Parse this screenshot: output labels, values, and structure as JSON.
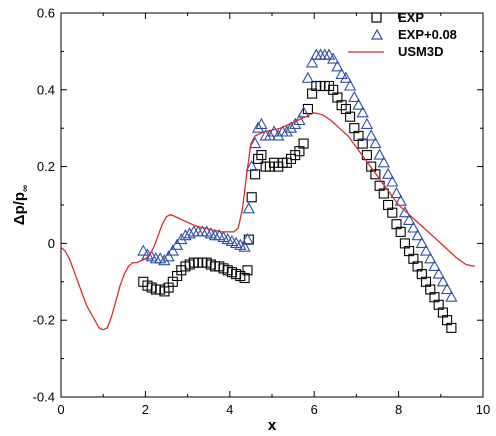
{
  "chart_data": {
    "type": "scatter",
    "title": "",
    "xlabel": "x",
    "ylabel": "Δp/p∞",
    "ylabel_main": "Δp/p",
    "ylabel_sub": "∞",
    "xlim": [
      0,
      10
    ],
    "ylim": [
      -0.4,
      0.6
    ],
    "xticks": [
      0,
      2,
      4,
      6,
      8,
      10
    ],
    "yticks": [
      -0.4,
      -0.2,
      0,
      0.2,
      0.4,
      0.6
    ],
    "xtick_labels": [
      "0",
      "2",
      "4",
      "6",
      "8",
      "10"
    ],
    "ytick_labels": [
      "-0.4",
      "-0.2",
      "0",
      "0.2",
      "0.4",
      "0.6"
    ],
    "grid": false,
    "legend_position": "top-right",
    "series": [
      {
        "name": "EXP",
        "kind": "markers",
        "marker": "square",
        "color": "#000000",
        "points": [
          [
            1.95,
            -0.1
          ],
          [
            2.05,
            -0.11
          ],
          [
            2.15,
            -0.115
          ],
          [
            2.25,
            -0.12
          ],
          [
            2.35,
            -0.12
          ],
          [
            2.45,
            -0.125
          ],
          [
            2.55,
            -0.115
          ],
          [
            2.65,
            -0.1
          ],
          [
            2.75,
            -0.085
          ],
          [
            2.85,
            -0.07
          ],
          [
            2.95,
            -0.06
          ],
          [
            3.05,
            -0.055
          ],
          [
            3.15,
            -0.05
          ],
          [
            3.25,
            -0.05
          ],
          [
            3.35,
            -0.05
          ],
          [
            3.45,
            -0.05
          ],
          [
            3.55,
            -0.055
          ],
          [
            3.65,
            -0.06
          ],
          [
            3.75,
            -0.06
          ],
          [
            3.85,
            -0.065
          ],
          [
            3.95,
            -0.07
          ],
          [
            4.05,
            -0.075
          ],
          [
            4.15,
            -0.08
          ],
          [
            4.25,
            -0.085
          ],
          [
            4.35,
            -0.09
          ],
          [
            4.42,
            -0.07
          ],
          [
            4.45,
            0.01
          ],
          [
            4.52,
            0.12
          ],
          [
            4.6,
            0.18
          ],
          [
            4.67,
            0.22
          ],
          [
            4.75,
            0.23
          ],
          [
            4.85,
            0.2
          ],
          [
            4.95,
            0.2
          ],
          [
            5.05,
            0.21
          ],
          [
            5.15,
            0.2
          ],
          [
            5.25,
            0.21
          ],
          [
            5.35,
            0.21
          ],
          [
            5.45,
            0.22
          ],
          [
            5.55,
            0.23
          ],
          [
            5.65,
            0.24
          ],
          [
            5.75,
            0.26
          ],
          [
            5.85,
            0.35
          ],
          [
            5.95,
            0.39
          ],
          [
            6.05,
            0.41
          ],
          [
            6.15,
            0.41
          ],
          [
            6.25,
            0.41
          ],
          [
            6.35,
            0.41
          ],
          [
            6.45,
            0.4
          ],
          [
            6.55,
            0.38
          ],
          [
            6.65,
            0.36
          ],
          [
            6.75,
            0.35
          ],
          [
            6.85,
            0.33
          ],
          [
            6.95,
            0.3
          ],
          [
            7.05,
            0.28
          ],
          [
            7.15,
            0.26
          ],
          [
            7.25,
            0.23
          ],
          [
            7.35,
            0.2
          ],
          [
            7.45,
            0.18
          ],
          [
            7.55,
            0.15
          ],
          [
            7.65,
            0.13
          ],
          [
            7.75,
            0.1
          ],
          [
            7.85,
            0.08
          ],
          [
            7.95,
            0.05
          ],
          [
            8.05,
            0.03
          ],
          [
            8.15,
            0.0
          ],
          [
            8.25,
            -0.02
          ],
          [
            8.35,
            -0.04
          ],
          [
            8.45,
            -0.06
          ],
          [
            8.55,
            -0.08
          ],
          [
            8.65,
            -0.1
          ],
          [
            8.75,
            -0.12
          ],
          [
            8.85,
            -0.14
          ],
          [
            8.95,
            -0.16
          ],
          [
            9.05,
            -0.18
          ],
          [
            9.15,
            -0.2
          ],
          [
            9.25,
            -0.22
          ]
        ]
      },
      {
        "name": "EXP+0.08",
        "kind": "markers",
        "marker": "triangle",
        "color": "#2e4fa8",
        "points": [
          [
            1.95,
            -0.02
          ],
          [
            2.05,
            -0.03
          ],
          [
            2.15,
            -0.035
          ],
          [
            2.25,
            -0.04
          ],
          [
            2.35,
            -0.04
          ],
          [
            2.45,
            -0.045
          ],
          [
            2.55,
            -0.035
          ],
          [
            2.65,
            -0.02
          ],
          [
            2.75,
            -0.005
          ],
          [
            2.85,
            0.01
          ],
          [
            2.95,
            0.02
          ],
          [
            3.05,
            0.025
          ],
          [
            3.15,
            0.03
          ],
          [
            3.25,
            0.03
          ],
          [
            3.35,
            0.03
          ],
          [
            3.45,
            0.03
          ],
          [
            3.55,
            0.025
          ],
          [
            3.65,
            0.02
          ],
          [
            3.75,
            0.02
          ],
          [
            3.85,
            0.015
          ],
          [
            3.95,
            0.01
          ],
          [
            4.05,
            0.005
          ],
          [
            4.15,
            0.0
          ],
          [
            4.25,
            -0.005
          ],
          [
            4.35,
            -0.01
          ],
          [
            4.42,
            0.01
          ],
          [
            4.45,
            0.09
          ],
          [
            4.52,
            0.2
          ],
          [
            4.6,
            0.26
          ],
          [
            4.67,
            0.3
          ],
          [
            4.75,
            0.31
          ],
          [
            4.85,
            0.28
          ],
          [
            4.95,
            0.28
          ],
          [
            5.05,
            0.29
          ],
          [
            5.15,
            0.28
          ],
          [
            5.25,
            0.29
          ],
          [
            5.35,
            0.29
          ],
          [
            5.45,
            0.3
          ],
          [
            5.55,
            0.31
          ],
          [
            5.65,
            0.32
          ],
          [
            5.75,
            0.34
          ],
          [
            5.85,
            0.43
          ],
          [
            5.95,
            0.47
          ],
          [
            6.05,
            0.49
          ],
          [
            6.15,
            0.49
          ],
          [
            6.25,
            0.49
          ],
          [
            6.35,
            0.49
          ],
          [
            6.45,
            0.48
          ],
          [
            6.55,
            0.46
          ],
          [
            6.65,
            0.44
          ],
          [
            6.75,
            0.43
          ],
          [
            6.85,
            0.41
          ],
          [
            6.95,
            0.38
          ],
          [
            7.05,
            0.36
          ],
          [
            7.15,
            0.34
          ],
          [
            7.25,
            0.31
          ],
          [
            7.35,
            0.28
          ],
          [
            7.45,
            0.26
          ],
          [
            7.55,
            0.23
          ],
          [
            7.65,
            0.21
          ],
          [
            7.75,
            0.18
          ],
          [
            7.85,
            0.16
          ],
          [
            7.95,
            0.13
          ],
          [
            8.05,
            0.11
          ],
          [
            8.15,
            0.08
          ],
          [
            8.25,
            0.06
          ],
          [
            8.35,
            0.04
          ],
          [
            8.45,
            0.02
          ],
          [
            8.55,
            0.0
          ],
          [
            8.65,
            -0.02
          ],
          [
            8.75,
            -0.04
          ],
          [
            8.85,
            -0.06
          ],
          [
            8.95,
            -0.08
          ],
          [
            9.05,
            -0.1
          ],
          [
            9.15,
            -0.12
          ],
          [
            9.25,
            -0.14
          ]
        ]
      },
      {
        "name": "USM3D",
        "kind": "line",
        "color": "#d42c2c",
        "points": [
          [
            0.0,
            -0.01
          ],
          [
            0.1,
            -0.02
          ],
          [
            0.2,
            -0.04
          ],
          [
            0.3,
            -0.07
          ],
          [
            0.4,
            -0.1
          ],
          [
            0.5,
            -0.13
          ],
          [
            0.6,
            -0.16
          ],
          [
            0.7,
            -0.18
          ],
          [
            0.8,
            -0.2
          ],
          [
            0.9,
            -0.22
          ],
          [
            1.0,
            -0.225
          ],
          [
            1.1,
            -0.22
          ],
          [
            1.2,
            -0.19
          ],
          [
            1.3,
            -0.15
          ],
          [
            1.4,
            -0.11
          ],
          [
            1.5,
            -0.08
          ],
          [
            1.6,
            -0.06
          ],
          [
            1.7,
            -0.05
          ],
          [
            1.8,
            -0.05
          ],
          [
            1.9,
            -0.045
          ],
          [
            2.0,
            -0.04
          ],
          [
            2.1,
            -0.03
          ],
          [
            2.2,
            -0.01
          ],
          [
            2.3,
            0.02
          ],
          [
            2.4,
            0.05
          ],
          [
            2.5,
            0.07
          ],
          [
            2.6,
            0.075
          ],
          [
            2.7,
            0.07
          ],
          [
            2.8,
            0.065
          ],
          [
            2.9,
            0.06
          ],
          [
            3.0,
            0.055
          ],
          [
            3.2,
            0.045
          ],
          [
            3.4,
            0.04
          ],
          [
            3.6,
            0.035
          ],
          [
            3.8,
            0.03
          ],
          [
            4.0,
            0.03
          ],
          [
            4.1,
            0.03
          ],
          [
            4.2,
            0.04
          ],
          [
            4.3,
            0.09
          ],
          [
            4.4,
            0.18
          ],
          [
            4.5,
            0.26
          ],
          [
            4.6,
            0.28
          ],
          [
            4.8,
            0.29
          ],
          [
            5.0,
            0.295
          ],
          [
            5.2,
            0.3
          ],
          [
            5.4,
            0.31
          ],
          [
            5.6,
            0.32
          ],
          [
            5.8,
            0.33
          ],
          [
            6.0,
            0.34
          ],
          [
            6.2,
            0.335
          ],
          [
            6.4,
            0.32
          ],
          [
            6.6,
            0.3
          ],
          [
            6.8,
            0.28
          ],
          [
            7.0,
            0.25
          ],
          [
            7.2,
            0.22
          ],
          [
            7.4,
            0.19
          ],
          [
            7.6,
            0.16
          ],
          [
            7.8,
            0.13
          ],
          [
            8.0,
            0.1
          ],
          [
            8.2,
            0.08
          ],
          [
            8.4,
            0.06
          ],
          [
            8.6,
            0.04
          ],
          [
            8.8,
            0.02
          ],
          [
            9.0,
            0.0
          ],
          [
            9.2,
            -0.02
          ],
          [
            9.4,
            -0.04
          ],
          [
            9.6,
            -0.055
          ],
          [
            9.8,
            -0.06
          ]
        ]
      }
    ]
  }
}
